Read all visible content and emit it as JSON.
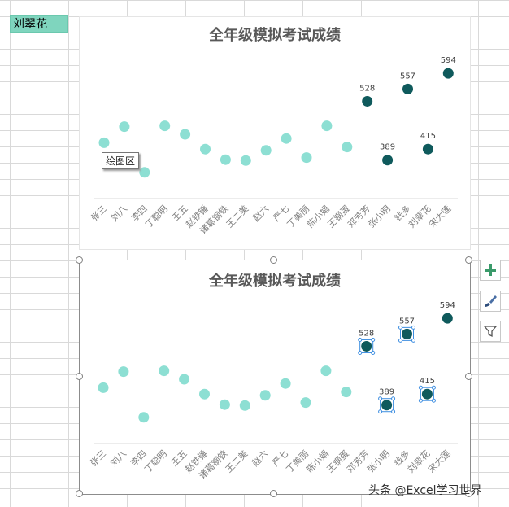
{
  "sheet": {
    "selected_cell_value": "刘翠花"
  },
  "tooltip": "绘图区",
  "watermark": "头条 @Excel学习世界",
  "colors": {
    "light_marker": "#8ddfd3",
    "dark_marker": "#0f5a5c",
    "selection_handle": "#3c8de0"
  },
  "chart_data": [
    {
      "type": "scatter",
      "title": "全年级模拟考试成绩",
      "categories": [
        "张三",
        "刘八",
        "李四",
        "丁聪明",
        "王五",
        "赵铁锤",
        "诸葛钢铁",
        "王二美",
        "赵六",
        "严七",
        "丁美丽",
        "陈小娟",
        "王钢蛋",
        "邓芳芳",
        "张小明",
        "钱多",
        "刘翠花",
        "宋大莲"
      ],
      "values": [
        430,
        468,
        360,
        470,
        450,
        415,
        390,
        388,
        412,
        440,
        395,
        470,
        420,
        528,
        389,
        557,
        415,
        594
      ],
      "highlight_start_index": 13,
      "ylim": [
        150,
        650
      ],
      "grid": false
    },
    {
      "type": "scatter",
      "title": "全年级模拟考试成绩",
      "categories": [
        "张三",
        "刘八",
        "李四",
        "丁聪明",
        "王五",
        "赵铁锤",
        "诸葛钢铁",
        "王二美",
        "赵六",
        "严七",
        "丁美丽",
        "陈小娟",
        "王钢蛋",
        "邓芳芳",
        "张小明",
        "钱多",
        "刘翠花",
        "宋大莲"
      ],
      "values": [
        430,
        468,
        360,
        470,
        450,
        415,
        390,
        388,
        412,
        440,
        395,
        470,
        420,
        528,
        389,
        557,
        415,
        594
      ],
      "highlight_start_index": 13,
      "selected_series": "highlighted",
      "ylim": [
        150,
        650
      ],
      "grid": false
    }
  ]
}
